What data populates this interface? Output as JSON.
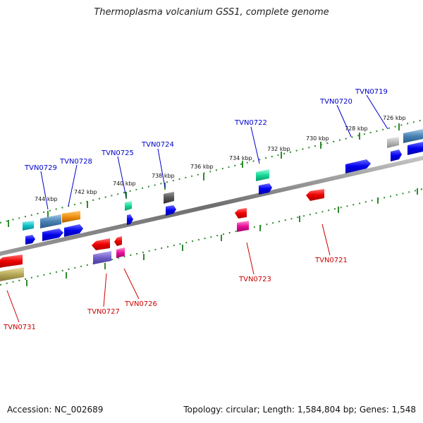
{
  "title": "Thermoplasma volcanium GSS1, complete genome",
  "footer": {
    "accession": "Accession: NC_002689",
    "summary": "Topology: circular; Length: 1,584,804 bp; Genes: 1,548"
  },
  "ruler_labels": [
    "726 kbp",
    "728 kbp",
    "730 kbp",
    "732 kbp",
    "734 kbp",
    "736 kbp",
    "738 kbp",
    "740 kbp",
    "742 kbp",
    "744 kbp"
  ],
  "gene_labels_top": [
    "TVN0719",
    "TVN0720",
    "TVN0722",
    "TVN0724",
    "TVN0725",
    "TVN0728",
    "TVN0729"
  ],
  "gene_labels_bottom": [
    "TVN0721",
    "TVN0723",
    "TVN0726",
    "TVN0727",
    "TVN0731"
  ],
  "colors": {
    "top_label": "#0000cc",
    "bottom_label": "#cc0000",
    "backbone": "#888888",
    "ruler": "#2e8b2e"
  }
}
